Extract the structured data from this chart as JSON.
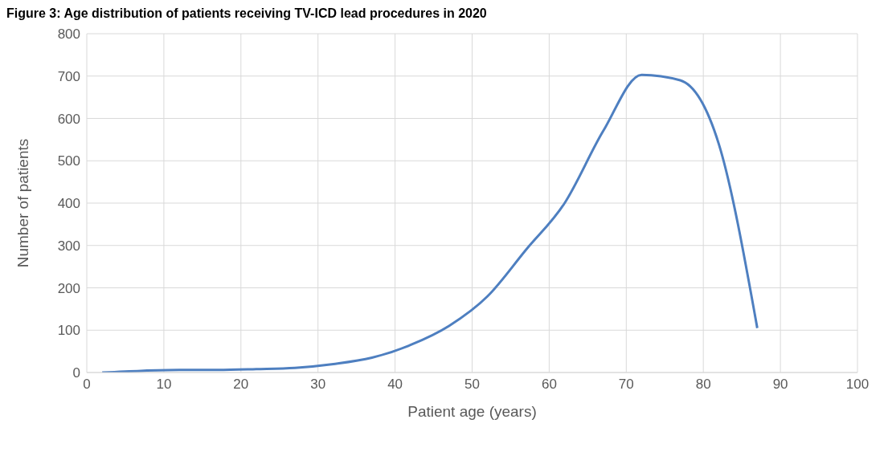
{
  "chart_data": {
    "type": "line",
    "title": "Figure 3: Age distribution of patients receiving TV-ICD lead procedures in 2020",
    "xlabel": "Patient age (years)",
    "ylabel": "Number of patients",
    "x": [
      2,
      7,
      12,
      17,
      22,
      27,
      32,
      37,
      42,
      47,
      52,
      57,
      62,
      67,
      72,
      77,
      82,
      87
    ],
    "series": [
      {
        "color": "#4e7fc0",
        "values": [
          0,
          4,
          6,
          6,
          8,
          11,
          20,
          35,
          65,
          110,
          180,
          290,
          400,
          570,
          703,
          690,
          540,
          105
        ]
      }
    ],
    "xlim": [
      0,
      100
    ],
    "xticks": [
      0,
      10,
      20,
      30,
      40,
      50,
      60,
      70,
      80,
      90,
      100
    ],
    "ylim": [
      0,
      800
    ],
    "yticks": [
      0,
      100,
      200,
      300,
      400,
      500,
      600,
      700,
      800
    ],
    "grid": true,
    "legend": false,
    "marker": "none",
    "line_style": "solid"
  }
}
